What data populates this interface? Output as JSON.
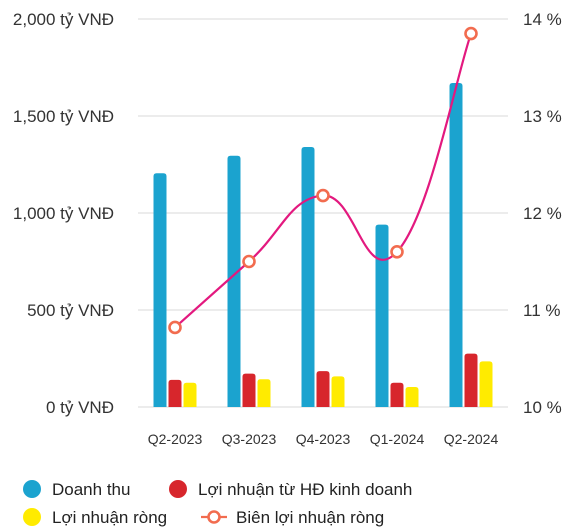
{
  "chart_data": {
    "type": "bar",
    "categories": [
      "Q2-2023",
      "Q3-2023",
      "Q4-2023",
      "Q1-2024",
      "Q2-2024"
    ],
    "series": [
      {
        "name": "Doanh thu",
        "type": "bar",
        "axis": "left",
        "color": "#1ba3cf",
        "values": [
          1205,
          1295,
          1340,
          940,
          1670
        ]
      },
      {
        "name": "Lợi nhuận từ HĐ kinh doanh",
        "type": "bar",
        "axis": "left",
        "color": "#d7262c",
        "values": [
          140,
          172,
          185,
          125,
          275
        ]
      },
      {
        "name": "Lợi nhuận ròng",
        "type": "bar",
        "axis": "left",
        "color": "#ffeb00",
        "values": [
          125,
          143,
          158,
          103,
          235
        ]
      },
      {
        "name": "Biên lợi nhuận ròng",
        "type": "line",
        "axis": "right",
        "color": "#e3197f",
        "marker_color": "#f26c4f",
        "values": [
          10.82,
          11.5,
          12.18,
          11.6,
          13.85
        ]
      }
    ],
    "left_axis": {
      "min": 0,
      "max": 2000,
      "ticks": [
        0,
        500,
        1000,
        1500,
        2000
      ],
      "tick_labels": [
        "0 tỷ VNĐ",
        "500 tỷ VNĐ",
        "1,000 tỷ VNĐ",
        "1,500 tỷ VNĐ",
        "2,000 tỷ VNĐ"
      ]
    },
    "right_axis": {
      "min": 10,
      "max": 14,
      "ticks": [
        10,
        11,
        12,
        13,
        14
      ],
      "tick_labels": [
        "10 %",
        "11 %",
        "12 %",
        "13 %",
        "14 %"
      ]
    },
    "grid": true,
    "legend_position": "bottom"
  }
}
